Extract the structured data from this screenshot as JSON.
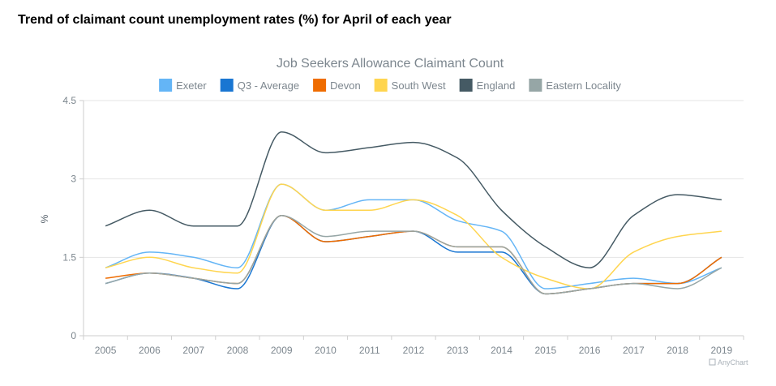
{
  "page": {
    "title": "Trend of claimant count unemployment rates (%) for April of each year"
  },
  "credit": {
    "text": "AnyChart"
  },
  "chart_data": {
    "type": "line",
    "title": "Job Seekers Allowance Claimant Count",
    "xlabel": "",
    "ylabel": "%",
    "ylim": [
      0,
      4.5
    ],
    "yticks": [
      0,
      1.5,
      3,
      4.5
    ],
    "ytick_labels": [
      "0",
      "1.5",
      "3",
      "4.5"
    ],
    "grid": true,
    "legend_position": "top",
    "categories": [
      "2005",
      "2006",
      "2007",
      "2008",
      "2009",
      "2010",
      "2011",
      "2012",
      "2013",
      "2014",
      "2015",
      "2016",
      "2017",
      "2018",
      "2019"
    ],
    "series": [
      {
        "name": "Exeter",
        "color": "#64b5f6",
        "values": [
          1.3,
          1.6,
          1.5,
          1.3,
          2.9,
          2.4,
          2.6,
          2.6,
          2.2,
          2.0,
          0.9,
          1.0,
          1.1,
          1.0,
          1.3
        ]
      },
      {
        "name": "Q3 - Average",
        "color": "#1976d2",
        "values": [
          1.0,
          1.2,
          1.1,
          0.9,
          2.3,
          1.8,
          1.9,
          2.0,
          1.6,
          1.6,
          0.8,
          0.9,
          1.0,
          1.0,
          1.5
        ]
      },
      {
        "name": "Devon",
        "color": "#ef6c00",
        "values": [
          1.1,
          1.2,
          1.1,
          1.0,
          2.3,
          1.8,
          1.9,
          2.0,
          1.7,
          1.7,
          0.8,
          0.9,
          1.0,
          1.0,
          1.5
        ]
      },
      {
        "name": "South West",
        "color": "#ffd54f",
        "values": [
          1.3,
          1.5,
          1.3,
          1.2,
          2.9,
          2.4,
          2.4,
          2.6,
          2.3,
          1.5,
          1.1,
          0.9,
          1.6,
          1.9,
          2.0
        ]
      },
      {
        "name": "England",
        "color": "#455a64",
        "values": [
          2.1,
          2.4,
          2.1,
          2.1,
          3.9,
          3.5,
          3.6,
          3.7,
          3.4,
          2.4,
          1.7,
          1.3,
          2.3,
          2.7,
          2.6
        ]
      },
      {
        "name": "Eastern Locality",
        "color": "#96a6a6",
        "values": [
          1.0,
          1.2,
          1.1,
          1.0,
          2.3,
          1.9,
          2.0,
          2.0,
          1.7,
          1.7,
          0.8,
          0.9,
          1.0,
          0.9,
          1.3
        ]
      }
    ]
  }
}
